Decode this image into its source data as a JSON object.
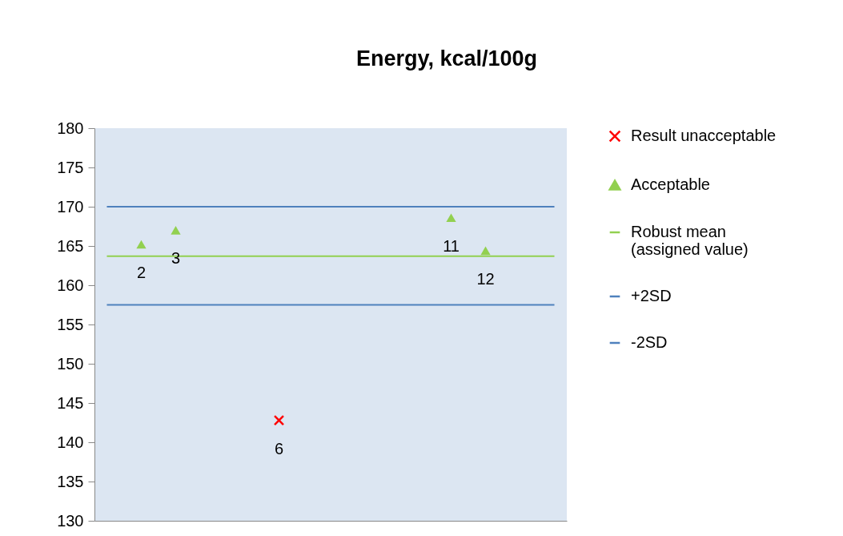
{
  "chart_data": {
    "type": "scatter",
    "title": "Energy, kcal/100g",
    "categories": [
      null,
      null,
      null,
      null,
      null,
      null,
      null,
      null,
      null,
      null,
      null,
      null,
      null,
      null
    ],
    "ylim": [
      130,
      180
    ],
    "yticks": [
      130,
      135,
      140,
      145,
      150,
      155,
      160,
      165,
      170,
      175,
      180
    ],
    "tick_labels": "y",
    "grid": false,
    "legend": "right",
    "series": [
      {
        "name": "Result unacceptable",
        "marker": "cross",
        "color": "#ff0000",
        "values": [
          null,
          null,
          null,
          null,
          null,
          142.8,
          null,
          null,
          null,
          null,
          null,
          null,
          null,
          null
        ]
      },
      {
        "name": "Acceptable",
        "marker": "triangle",
        "color": "#92d050",
        "values": [
          null,
          165.2,
          167.0,
          null,
          null,
          null,
          null,
          null,
          null,
          null,
          168.6,
          164.4,
          null,
          null
        ]
      },
      {
        "name": "Robust mean (assigned value)",
        "type": "line",
        "color": "#92d050",
        "values": [
          163.7,
          163.7,
          163.7,
          163.7,
          163.7,
          163.7,
          163.7,
          163.7,
          163.7,
          163.7,
          163.7,
          163.7,
          163.7,
          163.7
        ]
      },
      {
        "name": "+2SD",
        "type": "line",
        "color": "#4f81bd",
        "values": [
          170.0,
          170.0,
          170.0,
          170.0,
          170.0,
          170.0,
          170.0,
          170.0,
          170.0,
          170.0,
          170.0,
          170.0,
          170.0,
          170.0
        ]
      },
      {
        "name": "-2SD",
        "type": "line",
        "color": "#4f81bd",
        "values": [
          157.5,
          157.5,
          157.5,
          157.5,
          157.5,
          157.5,
          157.5,
          157.5,
          157.5,
          157.5,
          157.5,
          157.5,
          157.5,
          157.5
        ]
      }
    ],
    "annotations": [
      {
        "text": "2",
        "y": 165.2
      },
      {
        "text": "3",
        "y": 167.0
      },
      {
        "text": "6",
        "y": 142.8
      },
      {
        "text": "11",
        "y": 168.6
      },
      {
        "text": "12",
        "y": 164.4
      }
    ]
  }
}
